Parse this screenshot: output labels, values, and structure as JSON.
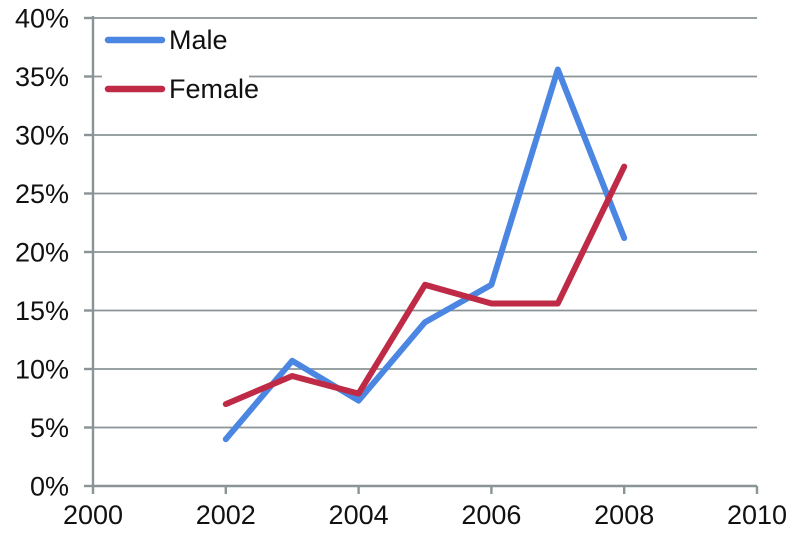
{
  "chart_data": {
    "type": "line",
    "title": "",
    "xlabel": "",
    "ylabel": "",
    "x": [
      2002,
      2003,
      2004,
      2005,
      2006,
      2007,
      2008
    ],
    "series": [
      {
        "name": "Male",
        "color": "#4a86e2",
        "values": [
          4.0,
          10.7,
          7.3,
          14.0,
          17.2,
          35.6,
          21.2
        ]
      },
      {
        "name": "Female",
        "color": "#bf2b46",
        "values": [
          7.0,
          9.4,
          7.9,
          17.2,
          15.6,
          15.6,
          27.3
        ]
      }
    ],
    "x_axis": {
      "min": 2000,
      "max": 2010,
      "tick_step": 2,
      "tick_labels": [
        "2000",
        "2002",
        "2004",
        "2006",
        "2008",
        "2010"
      ]
    },
    "y_axis": {
      "min": 0,
      "max": 40,
      "tick_step": 5,
      "tick_labels": [
        "0%",
        "5%",
        "10%",
        "15%",
        "20%",
        "25%",
        "30%",
        "35%",
        "40%"
      ]
    },
    "grid": true,
    "legend_position": "top-left",
    "colors": {
      "gridline": "#8a9496",
      "axis": "#8a9496",
      "text": "#111111",
      "background": "#ffffff"
    }
  }
}
